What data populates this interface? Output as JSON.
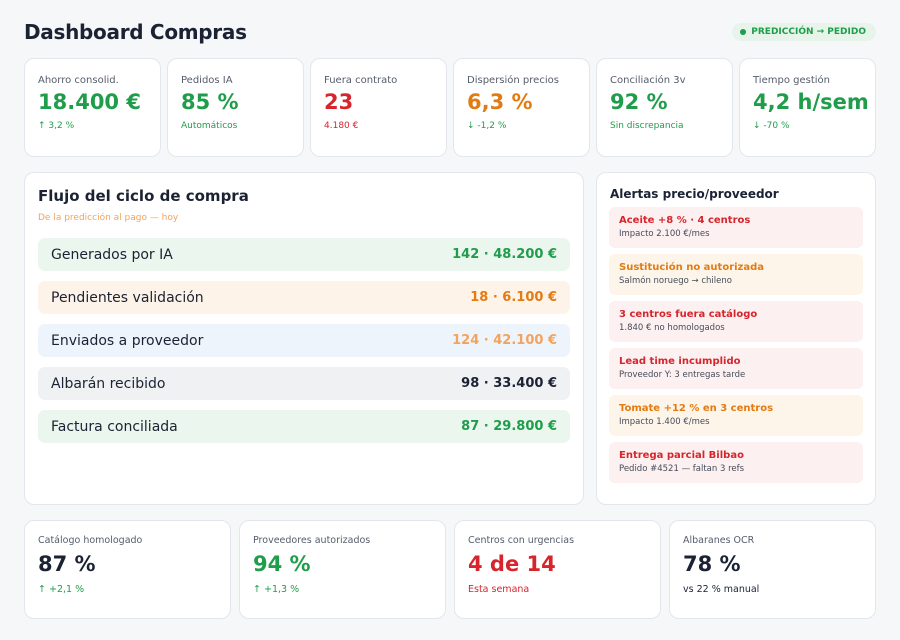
{
  "header": {
    "title": "Dashboard Compras",
    "badge": "PREDICCIÓN → PEDIDO"
  },
  "kpis": [
    {
      "label": "Ahorro consolid.",
      "value": "18.400 €",
      "sub": "↑ 3,2 %",
      "color": "#1f9d4a"
    },
    {
      "label": "Pedidos IA",
      "value": "85 %",
      "sub": "Automáticos",
      "color": "#1f9d4a"
    },
    {
      "label": "Fuera contrato",
      "value": "23",
      "sub": "4.180 €",
      "color": "#d6252d"
    },
    {
      "label": "Dispersión precios",
      "value": "6,3 %",
      "sub": "↓ -1,2 %",
      "color": "#e27b12"
    },
    {
      "label": "Conciliación 3v",
      "value": "92 %",
      "sub": "Sin discrepancia",
      "color": "#1f9d4a"
    },
    {
      "label": "Tiempo gestión",
      "value": "4,2 h/sem",
      "sub": "↓ -70 %",
      "color": "#1f9d4a"
    }
  ],
  "flow": {
    "title": "Flujo del ciclo de compra",
    "subtitle": "De la predicción al pago — hoy",
    "rows": [
      {
        "label": "Generados por IA",
        "value": "142 · 48.200 €"
      },
      {
        "label": "Pendientes validación",
        "value": "18 · 6.100 €"
      },
      {
        "label": "Enviados a proveedor",
        "value": "124 · 42.100 €"
      },
      {
        "label": "Albarán recibido",
        "value": "98 · 33.400 €"
      },
      {
        "label": "Factura conciliada",
        "value": "87 · 29.800 €"
      }
    ]
  },
  "alerts": {
    "title": "Alertas precio/proveedor",
    "items": [
      {
        "title": "Aceite +8 % · 4 centros",
        "detail": "Impacto 2.100 €/mes"
      },
      {
        "title": "Sustitución no autorizada",
        "detail": "Salmón noruego → chileno"
      },
      {
        "title": "3 centros fuera catálogo",
        "detail": "1.840 € no homologados"
      },
      {
        "title": "Lead time incumplido",
        "detail": "Proveedor Y: 3 entregas tarde"
      },
      {
        "title": "Tomate +12 % en 3 centros",
        "detail": "Impacto 1.400 €/mes"
      },
      {
        "title": "Entrega parcial Bilbao",
        "detail": "Pedido #4521 — faltan 3 refs"
      }
    ]
  },
  "bottom": [
    {
      "label": "Catálogo homologado",
      "value": "87 %",
      "sub": "↑ +2,1 %"
    },
    {
      "label": "Proveedores autorizados",
      "value": "94 %",
      "sub": "↑ +1,3 %"
    },
    {
      "label": "Centros con urgencias",
      "value": "4 de 14",
      "sub": "Esta semana"
    },
    {
      "label": "Albaranes OCR",
      "value": "78 %",
      "sub": "vs 22 % manual"
    }
  ]
}
